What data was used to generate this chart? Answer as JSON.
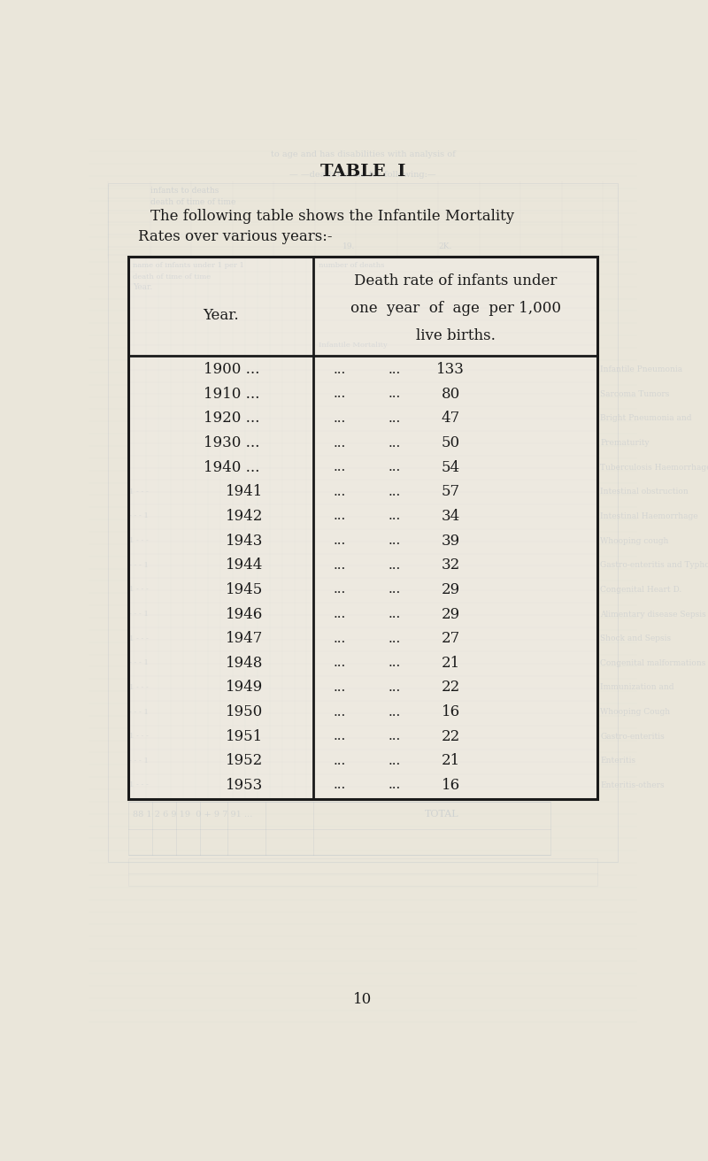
{
  "title": "TABLE  I",
  "col1_header": "Year.",
  "col2_header_line1": "Death rate of infants under",
  "col2_header_line2": "one  year  of  age  per 1,000",
  "col2_header_line3": "live births.",
  "intro_line1": "The following table shows the Infantile Mortality",
  "intro_line2": "Rates over various years:-",
  "rows": [
    {
      "year": "1900 ...",
      "dots1": "...",
      "dots2": "...",
      "value": "133",
      "indent": false
    },
    {
      "year": "1910 ...",
      "dots1": "...",
      "dots2": "...",
      "value": "80",
      "indent": false
    },
    {
      "year": "1920 ...",
      "dots1": "...",
      "dots2": "...",
      "value": "47",
      "indent": false
    },
    {
      "year": "1930 ...",
      "dots1": "...",
      "dots2": "...",
      "value": "50",
      "indent": false
    },
    {
      "year": "1940 ...",
      "dots1": "...",
      "dots2": "...",
      "value": "54",
      "indent": false
    },
    {
      "year": "1941",
      "dots1": "...",
      "dots2": "...",
      "value": "57",
      "indent": true
    },
    {
      "year": "1942",
      "dots1": "...",
      "dots2": "...",
      "value": "34",
      "indent": true
    },
    {
      "year": "1943",
      "dots1": "...",
      "dots2": "...",
      "value": "39",
      "indent": true
    },
    {
      "year": "1944",
      "dots1": "...",
      "dots2": "...",
      "value": "32",
      "indent": true
    },
    {
      "year": "1945",
      "dots1": "...",
      "dots2": "...",
      "value": "29",
      "indent": true
    },
    {
      "year": "1946",
      "dots1": "...",
      "dots2": "...",
      "value": "29",
      "indent": true
    },
    {
      "year": "1947",
      "dots1": "...",
      "dots2": "...",
      "value": "27",
      "indent": true
    },
    {
      "year": "1948",
      "dots1": "...",
      "dots2": "...",
      "value": "21",
      "indent": true
    },
    {
      "year": "1949",
      "dots1": "...",
      "dots2": "...",
      "value": "22",
      "indent": true
    },
    {
      "year": "1950",
      "dots1": "...",
      "dots2": "...",
      "value": "16",
      "indent": true
    },
    {
      "year": "1951",
      "dots1": "...",
      "dots2": "...",
      "value": "22",
      "indent": true
    },
    {
      "year": "1952",
      "dots1": "...",
      "dots2": "...",
      "value": "21",
      "indent": true
    },
    {
      "year": "1953",
      "dots1": "...",
      "dots2": "...",
      "value": "16",
      "indent": true
    }
  ],
  "page_number": "10",
  "page_bg": "#eae6da",
  "table_bg": "#ede9e0",
  "text_color": "#1a1a1a",
  "ghost_color": "#a8b4c4",
  "border_color": "#1a1a1a",
  "ghost_right_texts": [
    "Infantile Pneumonia",
    "Sarcoma Tumors",
    "Bright Pneumonia and",
    "Prematurity",
    "Tuberculosis Haemorrhage",
    "Intestinal obstruction",
    "Intestinal Haemorrhage",
    "Whooping cough",
    "Gastro-enteritis and Typhoid",
    "Congenital Heart D.",
    "Alimentary disease Sepsis",
    "Shock and Sepsis",
    "Congenital malformations",
    "Immunization and",
    "Whooping Cough",
    "Gastro-enteritis",
    "Enteritis",
    "Enteritis-others"
  ]
}
